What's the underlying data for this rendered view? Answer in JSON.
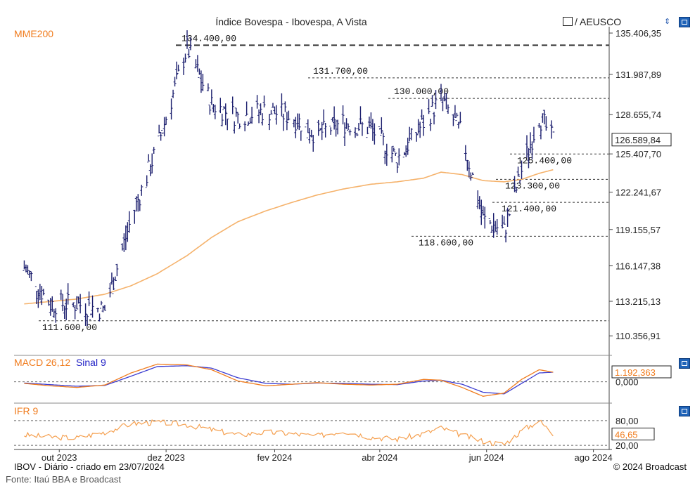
{
  "header": {
    "title": "Índice Bovespa - Ibovespa, A Vista",
    "ticker": "/ AEUSCO",
    "updown": "⇕"
  },
  "price_pane": {
    "ma_label": "MME200",
    "y_ticks": [
      "135.406,35",
      "131.987,89",
      "128.655,74",
      "125.407,70",
      "122.241,67",
      "119.155,57",
      "116.147,38",
      "113.215,13",
      "110.356,91"
    ],
    "last_value": "126.589,84",
    "levels": [
      {
        "value": 134400,
        "label": "134.400,00",
        "style": "dashed-bold"
      },
      {
        "value": 131700,
        "label": "131.700,00",
        "style": "dashed"
      },
      {
        "value": 130000,
        "label": "130.000,00",
        "style": "dashed"
      },
      {
        "value": 125400,
        "label": "125.400,00",
        "style": "dashed"
      },
      {
        "value": 123300,
        "label": "123.300,00",
        "style": "dashed"
      },
      {
        "value": 121400,
        "label": "121.400,00",
        "style": "dashed"
      },
      {
        "value": 118600,
        "label": "118.600,00",
        "style": "dashed"
      },
      {
        "value": 111600,
        "label": "111.600,00",
        "style": "dashed"
      }
    ]
  },
  "macd_pane": {
    "label_macd": "MACD 26,12",
    "label_signal": "Sinal 9",
    "y_ticks": [
      "0,000"
    ],
    "last_value": "1.192,363"
  },
  "rsi_pane": {
    "label": "IFR 9",
    "y_ticks": [
      "80,00",
      "20,00"
    ],
    "last_value": "46,65"
  },
  "x_axis": {
    "labels": [
      "out 2023",
      "dez 2023",
      "fev 2024",
      "abr 2024",
      "jun 2024",
      "ago 2024"
    ]
  },
  "footer": {
    "left": "IBOV - Diário - criado em 23/07/2024",
    "right": "© 2024 Broadcast",
    "source": "Fonte: Itaú BBA e Broadcast"
  },
  "colors": {
    "candles": "#1c1f6e",
    "ma": "#f5b26b",
    "macd": "#f07c1e",
    "signal": "#3b3bd0",
    "rsi": "#f5a050",
    "level_lines": "#333333"
  },
  "chart_data": {
    "type": "line",
    "title": "Índice Bovespa - Ibovespa, A Vista",
    "x_dates": [
      "2023-09-25",
      "2023-10-10",
      "2023-10-25",
      "2023-11-10",
      "2023-11-25",
      "2023-12-10",
      "2023-12-27",
      "2024-01-10",
      "2024-01-25",
      "2024-02-10",
      "2024-02-25",
      "2024-03-10",
      "2024-03-25",
      "2024-04-10",
      "2024-04-25",
      "2024-05-10",
      "2024-05-20",
      "2024-06-01",
      "2024-06-13",
      "2024-06-25",
      "2024-07-05",
      "2024-07-15",
      "2024-07-23"
    ],
    "series": [
      {
        "name": "IBOV",
        "values": [
          116000,
          113000,
          113000,
          112500,
          120000,
          126000,
          134200,
          129500,
          128500,
          129000,
          128500,
          127000,
          128000,
          127500,
          125000,
          128000,
          130000,
          127000,
          120000,
          119000,
          124000,
          128500,
          126590
        ]
      },
      {
        "name": "MME200",
        "values": [
          113000,
          113200,
          113400,
          113800,
          114500,
          115500,
          117000,
          118500,
          119800,
          120700,
          121400,
          122000,
          122500,
          122900,
          123100,
          123400,
          123900,
          123700,
          123200,
          123100,
          123300,
          123800,
          124100
        ]
      }
    ],
    "macd_values": [
      -200,
      -500,
      -700,
      -400,
      1100,
      2200,
      2100,
      1500,
      100,
      -500,
      -300,
      -100,
      -300,
      -400,
      -300,
      300,
      200,
      -700,
      -1800,
      -1400,
      300,
      1500,
      1192
    ],
    "signal_values": [
      -150,
      -350,
      -550,
      -450,
      700,
      1900,
      2000,
      1700,
      500,
      -200,
      -300,
      -150,
      -200,
      -300,
      -350,
      100,
      200,
      -300,
      -1300,
      -1500,
      -200,
      1100,
      1192
    ],
    "rsi_values": [
      45,
      40,
      38,
      52,
      72,
      76,
      70,
      58,
      45,
      52,
      48,
      42,
      55,
      40,
      35,
      48,
      62,
      45,
      30,
      22,
      55,
      80,
      46.65
    ]
  }
}
